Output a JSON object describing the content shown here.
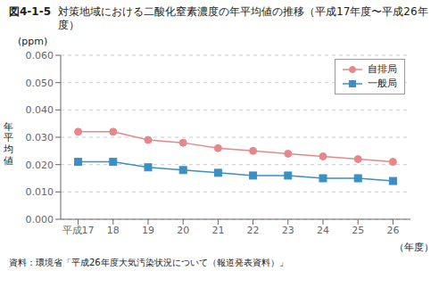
{
  "chart_data": {
    "type": "line",
    "title_prefix": "図4-1-5",
    "title": "対策地域における二酸化窒素濃度の年平均値の推移（平成17年度〜平成26年度）",
    "x": [
      17,
      18,
      19,
      20,
      21,
      22,
      23,
      24,
      25,
      26
    ],
    "xlim": [
      16.5,
      26.5
    ],
    "xticks": [
      {
        "value": 17,
        "label": "平成17"
      },
      18,
      19,
      20,
      21,
      22,
      23,
      24,
      25,
      26
    ],
    "xlabel": "（年度）",
    "ylabel": "年\n平\n均\n値",
    "yunits": "(ppm)",
    "ylim": [
      0.0,
      0.06
    ],
    "yticks": [
      {
        "value": 0.0,
        "label": "0.000"
      },
      {
        "value": 0.01,
        "label": "0.010"
      },
      {
        "value": 0.02,
        "label": "0.020"
      },
      {
        "value": 0.03,
        "label": "0.030"
      },
      {
        "value": 0.04,
        "label": "0.040"
      },
      {
        "value": 0.05,
        "label": "0.050"
      },
      {
        "value": 0.06,
        "label": "0.060"
      }
    ],
    "grid": "y",
    "legend": "upper right",
    "series": [
      {
        "name": "自排局",
        "color": "#e8878a",
        "marker": "circle",
        "values": [
          0.032,
          0.032,
          0.029,
          0.028,
          0.026,
          0.025,
          0.024,
          0.023,
          0.022,
          0.021
        ]
      },
      {
        "name": "一般局",
        "color": "#3b8fc4",
        "marker": "square",
        "values": [
          0.021,
          0.021,
          0.019,
          0.018,
          0.017,
          0.016,
          0.016,
          0.015,
          0.015,
          0.014
        ]
      }
    ],
    "source": "資料：環境省「平成26年度大気汚染状況について（報道発表資料）」"
  }
}
